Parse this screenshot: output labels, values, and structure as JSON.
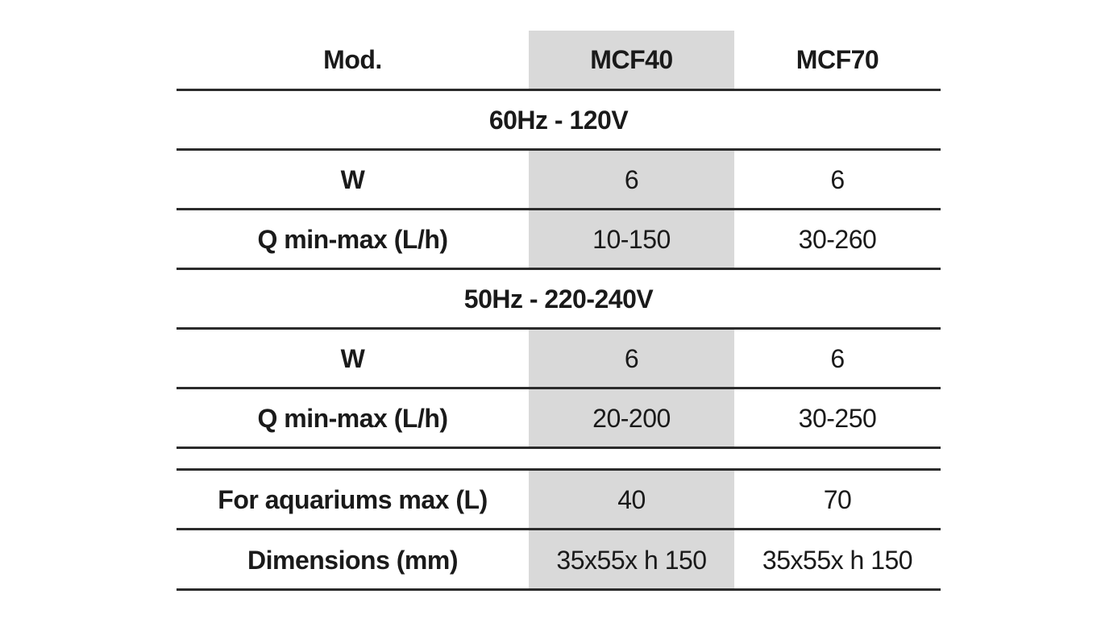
{
  "header": {
    "model_label": "Mod.",
    "models": [
      "MCF40",
      "MCF70"
    ]
  },
  "sections": [
    {
      "title": "60Hz - 120V",
      "rows": [
        {
          "label": "W",
          "values": [
            "6",
            "6"
          ]
        },
        {
          "label": "Q min-max (L/h)",
          "values": [
            "10-150",
            "30-260"
          ]
        }
      ]
    },
    {
      "title": "50Hz - 220-240V",
      "rows": [
        {
          "label": "W",
          "values": [
            "6",
            "6"
          ]
        },
        {
          "label": "Q min-max (L/h)",
          "values": [
            "20-200",
            "30-250"
          ]
        }
      ]
    }
  ],
  "footer_rows": [
    {
      "label": "For aquariums max (L)",
      "values": [
        "40",
        "70"
      ]
    },
    {
      "label": "Dimensions (mm)",
      "values": [
        "35x55x h 150",
        "35x55x h 150"
      ]
    }
  ],
  "colors": {
    "highlight_column": "#d9d9d9",
    "rule": "#2b2b2b",
    "text": "#1a1a1a"
  }
}
